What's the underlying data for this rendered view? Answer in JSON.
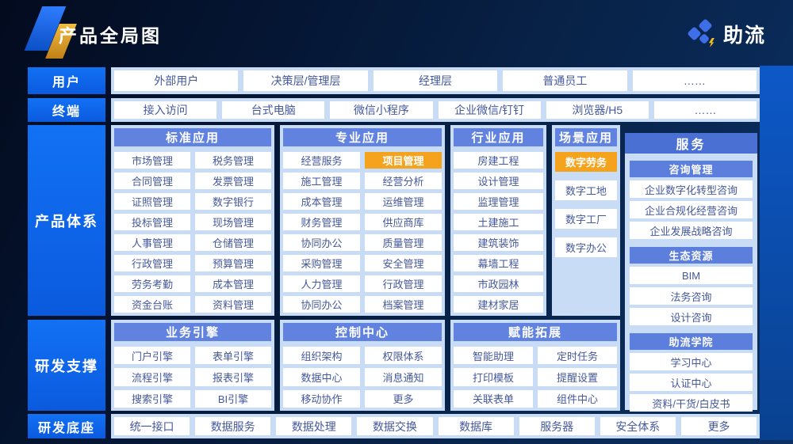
{
  "slide": {
    "title": "产品全局图",
    "brand": "助流"
  },
  "colors": {
    "accent_blue": "#0d63ee",
    "panel_bg": "#c9dcf6",
    "header_bar": "#6282e0",
    "service_bar": "#4a70d4",
    "group_bar": "#5c7edc",
    "highlight_orange": "#f5a31c",
    "cell_text": "#44589c",
    "band_blue": "#0c51b4"
  },
  "users_row": {
    "label": "用户",
    "items": [
      "外部用户",
      "决策层/管理层",
      "经理层",
      "普通员工",
      "……"
    ]
  },
  "terminals_row": {
    "label": "终端",
    "items": [
      "接入访问",
      "台式电脑",
      "微信小程序",
      "企业微信/钉钉",
      "浏览器/H5",
      "……"
    ]
  },
  "products_row": {
    "label": "产品体系",
    "panels": [
      {
        "title": "标准应用",
        "cols": 2,
        "items": [
          "市场管理",
          "税务管理",
          "合同管理",
          "发票管理",
          "证照管理",
          "数字银行",
          "投标管理",
          "现场管理",
          "人事管理",
          "仓储管理",
          "行政管理",
          "预算管理",
          "劳务考勤",
          "成本管理",
          "资金台账",
          "资料管理"
        ]
      },
      {
        "title": "专业应用",
        "cols": 2,
        "items": [
          "经营服务",
          {
            "label": "项目管理",
            "highlight": true
          },
          "施工管理",
          "经营分析",
          "成本管理",
          "运维管理",
          "财务管理",
          "供应商库",
          "协同办公",
          "质量管理",
          "采购管理",
          "安全管理",
          "人力管理",
          "行政管理",
          "协同办公",
          "档案管理"
        ]
      },
      {
        "title": "行业应用",
        "cols": 1,
        "items": [
          "房建工程",
          "设计管理",
          "监理管理",
          "土建施工",
          "建筑装饰",
          "幕墙工程",
          "市政园林",
          "建材家居"
        ]
      },
      {
        "title": "场景应用",
        "cols": 1,
        "items": [
          {
            "label": "数字劳务",
            "highlight": true
          },
          "数字工地",
          "数字工厂",
          "数字办公"
        ]
      }
    ]
  },
  "support_row": {
    "label": "研发支撑",
    "panels": [
      {
        "title": "业务引擎",
        "cols": 2,
        "items": [
          "门户引擎",
          "表单引擎",
          "流程引擎",
          "报表引擎",
          "搜索引擎",
          "BI引擎"
        ]
      },
      {
        "title": "控制中心",
        "cols": 2,
        "items": [
          "组织架构",
          "权限体系",
          "数据中心",
          "消息通知",
          "移动协作",
          "更多"
        ]
      },
      {
        "title": "赋能拓展",
        "cols": 2,
        "items": [
          "智能助理",
          "定时任务",
          "打印模板",
          "提醒设置",
          "关联表单",
          "组件中心"
        ]
      }
    ]
  },
  "foundation_row": {
    "label": "研发底座",
    "items": [
      "统一接口",
      "数据服务",
      "数据处理",
      "数据交换",
      "数据库",
      "服务器",
      "安全体系",
      "更多"
    ]
  },
  "services_panel": {
    "title": "服务",
    "groups": [
      {
        "title": "咨询管理",
        "items": [
          "企业数字化转型咨询",
          "企业合规化经营咨询",
          "企业发展战略咨询"
        ]
      },
      {
        "title": "生态资源",
        "items": [
          "BIM",
          "法务咨询",
          "设计咨询"
        ]
      },
      {
        "title": "助流学院",
        "items": [
          "学习中心",
          "认证中心",
          "资料/干货/白皮书"
        ]
      }
    ]
  }
}
